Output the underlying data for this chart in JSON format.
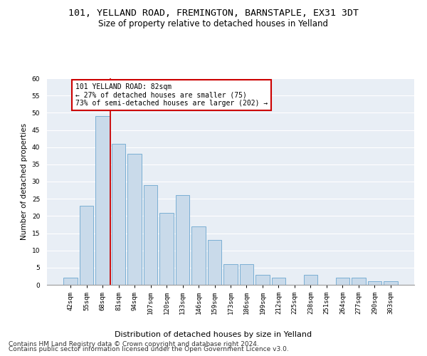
{
  "title1": "101, YELLAND ROAD, FREMINGTON, BARNSTAPLE, EX31 3DT",
  "title2": "Size of property relative to detached houses in Yelland",
  "xlabel": "Distribution of detached houses by size in Yelland",
  "ylabel": "Number of detached properties",
  "categories": [
    "42sqm",
    "55sqm",
    "68sqm",
    "81sqm",
    "94sqm",
    "107sqm",
    "120sqm",
    "133sqm",
    "146sqm",
    "159sqm",
    "173sqm",
    "186sqm",
    "199sqm",
    "212sqm",
    "225sqm",
    "238sqm",
    "251sqm",
    "264sqm",
    "277sqm",
    "290sqm",
    "303sqm"
  ],
  "values": [
    2,
    23,
    49,
    41,
    38,
    29,
    21,
    26,
    17,
    13,
    6,
    6,
    3,
    2,
    0,
    3,
    0,
    2,
    2,
    1,
    1
  ],
  "bar_color": "#c9daea",
  "bar_edge_color": "#7bafd4",
  "highlight_line_color": "#cc0000",
  "annotation_text": "101 YELLAND ROAD: 82sqm\n← 27% of detached houses are smaller (75)\n73% of semi-detached houses are larger (202) →",
  "annotation_box_color": "#ffffff",
  "annotation_box_edge_color": "#cc0000",
  "ylim": [
    0,
    60
  ],
  "yticks": [
    0,
    5,
    10,
    15,
    20,
    25,
    30,
    35,
    40,
    45,
    50,
    55,
    60
  ],
  "background_color": "#e8eef5",
  "footer1": "Contains HM Land Registry data © Crown copyright and database right 2024.",
  "footer2": "Contains public sector information licensed under the Open Government Licence v3.0.",
  "title1_fontsize": 9.5,
  "title2_fontsize": 8.5,
  "xlabel_fontsize": 8,
  "ylabel_fontsize": 7.5,
  "tick_fontsize": 6.5,
  "annotation_fontsize": 7,
  "footer_fontsize": 6.5
}
